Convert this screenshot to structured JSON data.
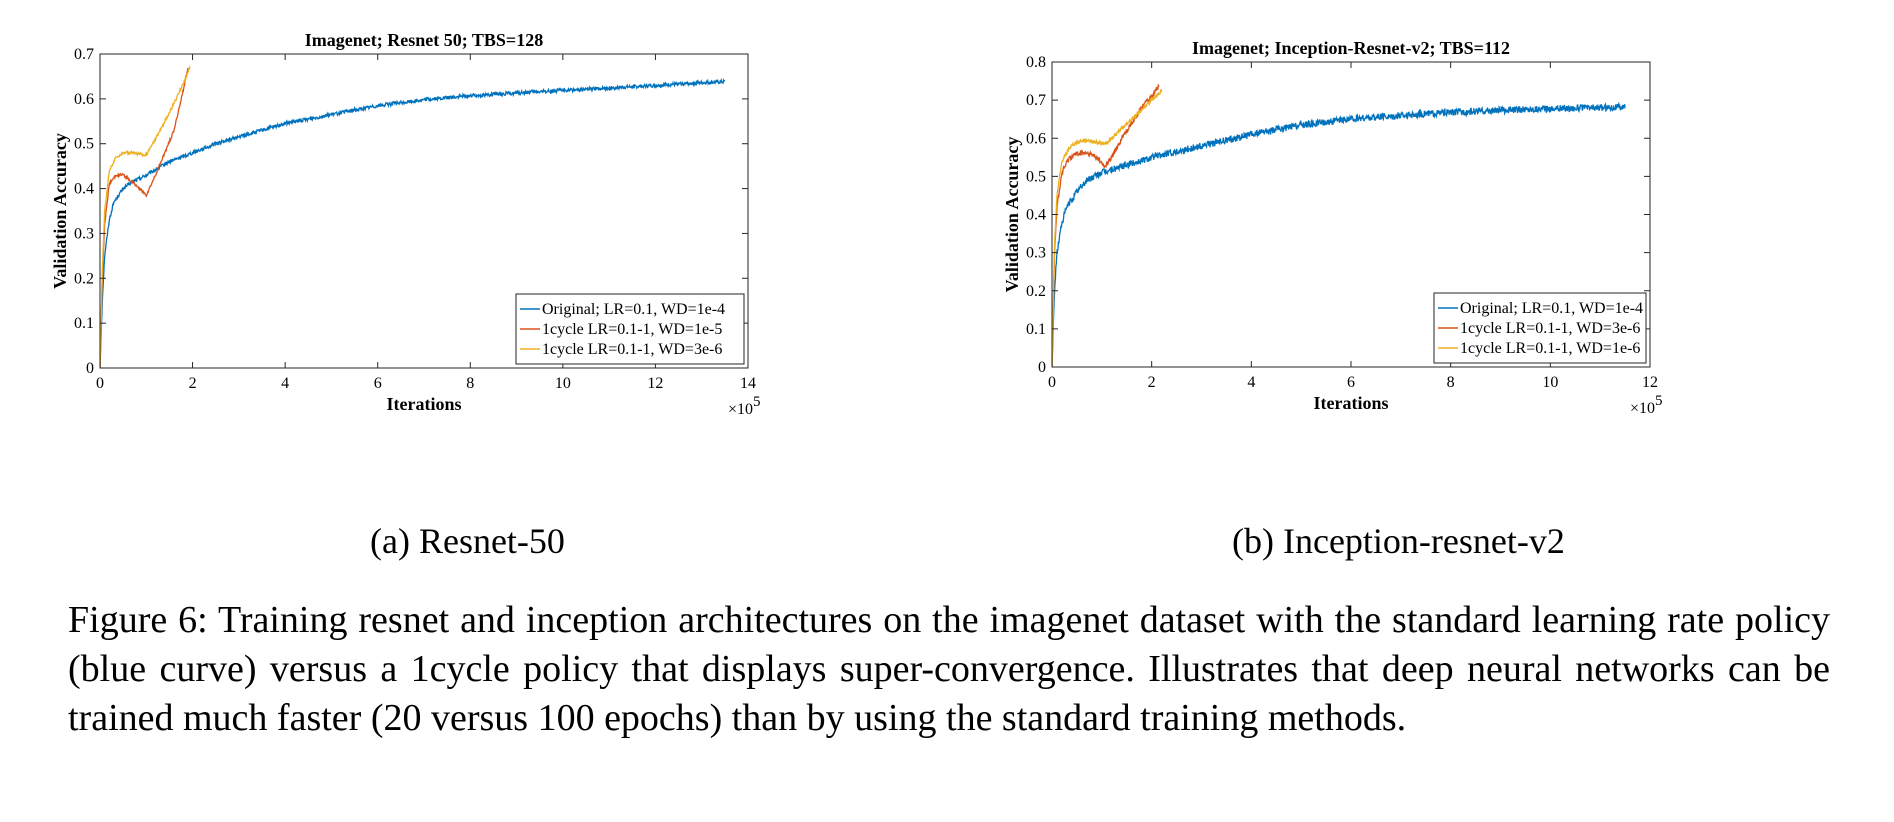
{
  "chart_data": [
    {
      "type": "line",
      "title": "Imagenet; Resnet 50; TBS=128",
      "xlabel": "Iterations",
      "ylabel": "Validation Accuracy",
      "x_multiplier_label": "×10⁵",
      "x_multiplier_base": "×10",
      "x_multiplier_exp": "5",
      "xlim": [
        0,
        14
      ],
      "ylim": [
        0,
        0.7
      ],
      "xticks": [
        "0",
        "2",
        "4",
        "6",
        "8",
        "10",
        "12",
        "14"
      ],
      "yticks": [
        "0",
        "0.1",
        "0.2",
        "0.3",
        "0.4",
        "0.5",
        "0.6",
        "0.7"
      ],
      "legend_position": "bottom-right",
      "grid": false,
      "series": [
        {
          "name": "Original; LR=0.1, WD=1e-4",
          "color": "#0072BD",
          "noise": 0.004,
          "x": [
            0,
            0.05,
            0.1,
            0.2,
            0.3,
            0.5,
            0.7,
            1.0,
            1.5,
            2.0,
            2.5,
            3,
            4,
            5,
            6,
            7,
            8,
            9,
            10,
            11,
            12,
            13,
            13.5
          ],
          "y": [
            0.0,
            0.15,
            0.25,
            0.33,
            0.37,
            0.4,
            0.415,
            0.43,
            0.46,
            0.48,
            0.5,
            0.515,
            0.545,
            0.565,
            0.585,
            0.598,
            0.607,
            0.613,
            0.619,
            0.624,
            0.63,
            0.636,
            0.638
          ]
        },
        {
          "name": "1cycle LR=0.1-1, WD=1e-5",
          "color": "#D95319",
          "noise": 0.003,
          "x": [
            0,
            0.05,
            0.1,
            0.2,
            0.35,
            0.5,
            0.7,
            0.9,
            1.0,
            1.2,
            1.4,
            1.6,
            1.8,
            1.9
          ],
          "y": [
            0.0,
            0.2,
            0.32,
            0.41,
            0.43,
            0.43,
            0.415,
            0.395,
            0.385,
            0.43,
            0.48,
            0.53,
            0.62,
            0.67
          ]
        },
        {
          "name": "1cycle LR=0.1-1, WD=3e-6",
          "color": "#EDB120",
          "noise": 0.003,
          "x": [
            0,
            0.05,
            0.1,
            0.2,
            0.35,
            0.5,
            0.7,
            1.0,
            1.2,
            1.4,
            1.6,
            1.8,
            1.95
          ],
          "y": [
            0.0,
            0.22,
            0.35,
            0.44,
            0.47,
            0.48,
            0.48,
            0.475,
            0.51,
            0.55,
            0.59,
            0.635,
            0.67
          ]
        }
      ]
    },
    {
      "type": "line",
      "title": "Imagenet; Inception-Resnet-v2; TBS=112",
      "xlabel": "Iterations",
      "ylabel": "Validation Accuracy",
      "x_multiplier_label": "×10⁵",
      "x_multiplier_base": "×10",
      "x_multiplier_exp": "5",
      "xlim": [
        0,
        12
      ],
      "ylim": [
        0,
        0.8
      ],
      "xticks": [
        "0",
        "2",
        "4",
        "6",
        "8",
        "10",
        "12"
      ],
      "yticks": [
        "0",
        "0.1",
        "0.2",
        "0.3",
        "0.4",
        "0.5",
        "0.6",
        "0.7",
        "0.8"
      ],
      "legend_position": "bottom-right",
      "grid": false,
      "series": [
        {
          "name": "Original; LR=0.1, WD=1e-4",
          "color": "#0072BD",
          "noise": 0.009,
          "x": [
            0,
            0.05,
            0.1,
            0.2,
            0.3,
            0.5,
            0.7,
            1.0,
            1.5,
            2.0,
            2.5,
            3,
            4,
            5,
            6,
            7,
            8,
            9,
            10,
            11,
            11.5
          ],
          "y": [
            0.0,
            0.2,
            0.3,
            0.38,
            0.42,
            0.46,
            0.49,
            0.51,
            0.53,
            0.55,
            0.565,
            0.58,
            0.61,
            0.635,
            0.65,
            0.66,
            0.668,
            0.673,
            0.678,
            0.68,
            0.682
          ]
        },
        {
          "name": "1cycle LR=0.1-1, WD=3e-6",
          "color": "#D95319",
          "noise": 0.007,
          "x": [
            0,
            0.05,
            0.1,
            0.2,
            0.35,
            0.5,
            0.7,
            0.9,
            1.05,
            1.2,
            1.4,
            1.6,
            1.8,
            2.0,
            2.15
          ],
          "y": [
            0.0,
            0.3,
            0.42,
            0.51,
            0.55,
            0.56,
            0.56,
            0.55,
            0.525,
            0.55,
            0.6,
            0.64,
            0.68,
            0.71,
            0.735
          ]
        },
        {
          "name": "1cycle LR=0.1-1, WD=1e-6",
          "color": "#EDB120",
          "noise": 0.005,
          "x": [
            0,
            0.05,
            0.1,
            0.2,
            0.35,
            0.5,
            0.7,
            0.9,
            1.05,
            1.2,
            1.4,
            1.6,
            1.8,
            2.0,
            2.2
          ],
          "y": [
            0.0,
            0.32,
            0.45,
            0.54,
            0.575,
            0.59,
            0.595,
            0.59,
            0.585,
            0.6,
            0.625,
            0.65,
            0.675,
            0.7,
            0.725
          ]
        }
      ]
    }
  ],
  "subcaptions": {
    "a": "(a) Resnet-50",
    "b": "(b) Inception-resnet-v2"
  },
  "caption": "Figure 6: Training resnet and inception architectures on the imagenet dataset with the standard learning rate policy (blue curve) versus a 1cycle policy that displays super-convergence. Illustrates that deep neural networks can be trained much faster (20 versus 100 epochs) than by using the standard training methods."
}
